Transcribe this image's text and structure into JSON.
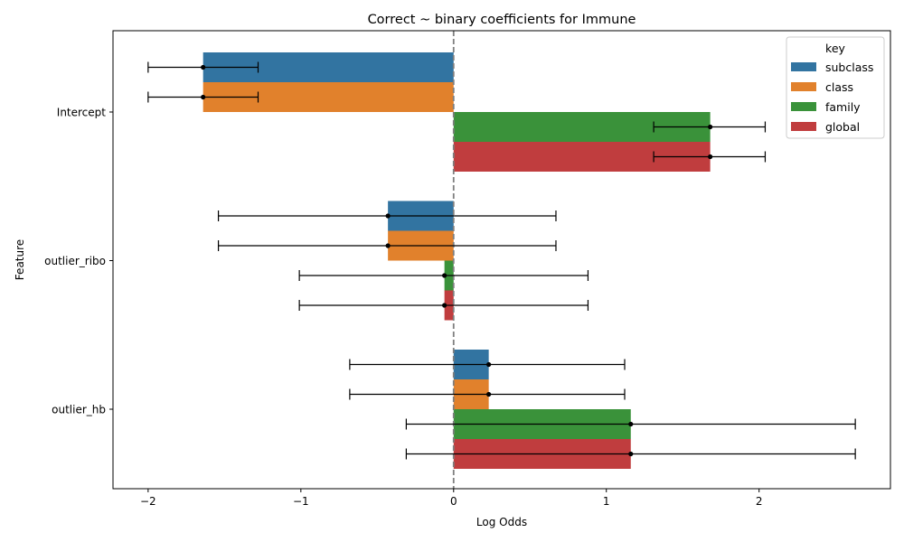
{
  "chart_data": {
    "type": "bar",
    "orientation": "horizontal",
    "title": "Correct ~ binary coefficients for Immune",
    "xlabel": "Log Odds",
    "ylabel": "Feature",
    "xlim": [
      -2.23,
      2.86
    ],
    "xticks": [
      -2,
      -1,
      0,
      1,
      2
    ],
    "xtick_labels": [
      "−2",
      "−1",
      "0",
      "1",
      "2"
    ],
    "categories": [
      "Intercept",
      "outlier_ribo",
      "outlier_hb"
    ],
    "reference_line": 0,
    "legend": {
      "title": "key",
      "placement": "top-right"
    },
    "series": [
      {
        "name": "subclass",
        "color": "#3274a1",
        "values": [
          -1.64,
          -0.43,
          0.23
        ],
        "ci_low": [
          -2.0,
          -1.54,
          -0.68
        ],
        "ci_high": [
          -1.28,
          0.67,
          1.12
        ]
      },
      {
        "name": "class",
        "color": "#e1812c",
        "values": [
          -1.64,
          -0.43,
          0.23
        ],
        "ci_low": [
          -2.0,
          -1.54,
          -0.68
        ],
        "ci_high": [
          -1.28,
          0.67,
          1.12
        ]
      },
      {
        "name": "family",
        "color": "#3a923a",
        "values": [
          1.68,
          -0.06,
          1.16
        ],
        "ci_low": [
          1.31,
          -1.01,
          -0.31
        ],
        "ci_high": [
          2.04,
          0.88,
          2.63
        ]
      },
      {
        "name": "global",
        "color": "#c03d3e",
        "values": [
          1.68,
          -0.06,
          1.16
        ],
        "ci_low": [
          1.31,
          -1.01,
          -0.31
        ],
        "ci_high": [
          2.04,
          0.88,
          2.63
        ]
      }
    ]
  }
}
